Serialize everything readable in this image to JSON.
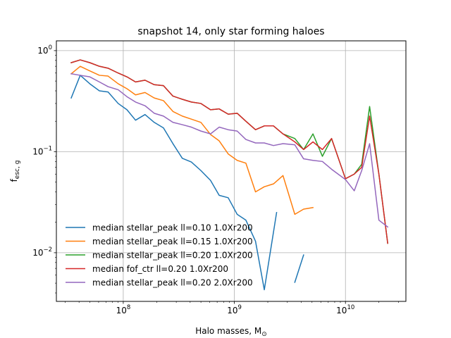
{
  "chart_data": {
    "type": "line",
    "title": "snapshot 14, only star forming haloes",
    "xlabel": "Halo masses, M",
    "xlabel_sub": "⊙",
    "ylabel": "f",
    "ylabel_sub": "esc, g",
    "xscale": "log",
    "yscale": "log",
    "xlim": [
      25000000,
      35000000000
    ],
    "ylim": [
      0.0033,
      1.25
    ],
    "grid": true,
    "legend_position": "lower-left",
    "x_major_ticks": [
      {
        "value": 100000000,
        "base": "10",
        "exp": "8"
      },
      {
        "value": 1000000000,
        "base": "10",
        "exp": "9"
      },
      {
        "value": 10000000000,
        "base": "10",
        "exp": "10"
      }
    ],
    "y_major_ticks": [
      {
        "value": 0.01,
        "base": "10",
        "exp": "−2"
      },
      {
        "value": 0.1,
        "base": "10",
        "exp": "−1"
      },
      {
        "value": 1,
        "base": "10",
        "exp": "0"
      }
    ],
    "series": [
      {
        "name": "median stellar_peak ll=0.10 1.0Xr200",
        "color": "#1f77b4",
        "segments": [
          [
            [
              34000000,
              0.34
            ],
            [
              41000000,
              0.57
            ],
            [
              50000000,
              0.47
            ],
            [
              61000000,
              0.4
            ],
            [
              73000000,
              0.39
            ],
            [
              90000000,
              0.3
            ],
            [
              108000000,
              0.26
            ],
            [
              129000000,
              0.205
            ],
            [
              157000000,
              0.233
            ],
            [
              190000000,
              0.195
            ],
            [
              230000000,
              0.172
            ],
            [
              280000000,
              0.12
            ],
            [
              340000000,
              0.086
            ],
            [
              410000000,
              0.079
            ],
            [
              500000000,
              0.065
            ],
            [
              610000000,
              0.052
            ],
            [
              730000000,
              0.037
            ],
            [
              880000000,
              0.035
            ],
            [
              1060000000,
              0.024
            ],
            [
              1270000000,
              0.021
            ],
            [
              1550000000,
              0.013
            ],
            [
              1860000000,
              0.0043
            ],
            [
              2250000000,
              0.016
            ],
            [
              2400000000,
              0.025
            ]
          ],
          [
            [
              3500000000,
              0.0051
            ],
            [
              4200000000,
              0.0095
            ]
          ]
        ]
      },
      {
        "name": "median stellar_peak ll=0.15 1.0Xr200",
        "color": "#ff7f0e",
        "segments": [
          [
            [
              34000000,
              0.59
            ],
            [
              41000000,
              0.7
            ],
            [
              50000000,
              0.63
            ],
            [
              61000000,
              0.57
            ],
            [
              73000000,
              0.56
            ],
            [
              90000000,
              0.47
            ],
            [
              108000000,
              0.42
            ],
            [
              129000000,
              0.365
            ],
            [
              157000000,
              0.385
            ],
            [
              190000000,
              0.34
            ],
            [
              230000000,
              0.32
            ],
            [
              280000000,
              0.25
            ],
            [
              340000000,
              0.225
            ],
            [
              410000000,
              0.21
            ],
            [
              500000000,
              0.195
            ],
            [
              610000000,
              0.148
            ],
            [
              730000000,
              0.128
            ],
            [
              880000000,
              0.095
            ],
            [
              1060000000,
              0.082
            ],
            [
              1270000000,
              0.077
            ],
            [
              1550000000,
              0.04
            ],
            [
              1860000000,
              0.045
            ],
            [
              2250000000,
              0.048
            ],
            [
              2740000000,
              0.058
            ],
            [
              3500000000,
              0.024
            ],
            [
              4200000000,
              0.027
            ],
            [
              5100000000,
              0.028
            ]
          ]
        ]
      },
      {
        "name": "median stellar_peak ll=0.20 1.0Xr200",
        "color": "#2ca02c",
        "segments": [
          [
            [
              34000000,
              0.76
            ],
            [
              41000000,
              0.81
            ],
            [
              50000000,
              0.76
            ],
            [
              61000000,
              0.7
            ],
            [
              73000000,
              0.67
            ],
            [
              90000000,
              0.6
            ],
            [
              108000000,
              0.55
            ],
            [
              129000000,
              0.49
            ],
            [
              157000000,
              0.51
            ],
            [
              190000000,
              0.46
            ],
            [
              230000000,
              0.45
            ],
            [
              280000000,
              0.355
            ],
            [
              340000000,
              0.33
            ],
            [
              410000000,
              0.31
            ],
            [
              500000000,
              0.3
            ],
            [
              610000000,
              0.26
            ],
            [
              730000000,
              0.265
            ],
            [
              880000000,
              0.235
            ],
            [
              1060000000,
              0.24
            ],
            [
              1270000000,
              0.2
            ],
            [
              1550000000,
              0.165
            ],
            [
              1860000000,
              0.18
            ],
            [
              2250000000,
              0.18
            ],
            [
              2740000000,
              0.15
            ],
            [
              3500000000,
              0.135
            ],
            [
              4200000000,
              0.105
            ],
            [
              5100000000,
              0.15
            ],
            [
              6200000000,
              0.09
            ],
            [
              7500000000,
              0.135
            ],
            [
              10000000000,
              0.054
            ],
            [
              12000000000,
              0.06
            ],
            [
              14000000000,
              0.075
            ],
            [
              16500000000,
              0.28
            ],
            [
              20000000000,
              0.06
            ],
            [
              24000000000,
              0.0124
            ]
          ]
        ]
      },
      {
        "name": "median fof_ctr ll=0.20 1.0Xr200",
        "color": "#d62728",
        "segments": [
          [
            [
              34000000,
              0.76
            ],
            [
              41000000,
              0.81
            ],
            [
              50000000,
              0.76
            ],
            [
              61000000,
              0.7
            ],
            [
              73000000,
              0.67
            ],
            [
              90000000,
              0.6
            ],
            [
              108000000,
              0.55
            ],
            [
              129000000,
              0.49
            ],
            [
              157000000,
              0.51
            ],
            [
              190000000,
              0.46
            ],
            [
              230000000,
              0.45
            ],
            [
              280000000,
              0.355
            ],
            [
              340000000,
              0.33
            ],
            [
              410000000,
              0.31
            ],
            [
              500000000,
              0.3
            ],
            [
              610000000,
              0.26
            ],
            [
              730000000,
              0.265
            ],
            [
              880000000,
              0.235
            ],
            [
              1060000000,
              0.24
            ],
            [
              1270000000,
              0.2
            ],
            [
              1550000000,
              0.165
            ],
            [
              1860000000,
              0.18
            ],
            [
              2250000000,
              0.18
            ],
            [
              2740000000,
              0.15
            ],
            [
              3500000000,
              0.125
            ],
            [
              4200000000,
              0.105
            ],
            [
              5100000000,
              0.125
            ],
            [
              6200000000,
              0.105
            ],
            [
              7500000000,
              0.135
            ],
            [
              10000000000,
              0.054
            ],
            [
              12000000000,
              0.06
            ],
            [
              14000000000,
              0.07
            ],
            [
              16500000000,
              0.225
            ],
            [
              20000000000,
              0.06
            ],
            [
              24000000000,
              0.0124
            ]
          ]
        ]
      },
      {
        "name": "median stellar_peak ll=0.20 2.0Xr200",
        "color": "#9467bd",
        "segments": [
          [
            [
              34000000,
              0.59
            ],
            [
              41000000,
              0.57
            ],
            [
              50000000,
              0.55
            ],
            [
              61000000,
              0.49
            ],
            [
              73000000,
              0.44
            ],
            [
              90000000,
              0.41
            ],
            [
              108000000,
              0.35
            ],
            [
              129000000,
              0.31
            ],
            [
              157000000,
              0.285
            ],
            [
              190000000,
              0.24
            ],
            [
              230000000,
              0.225
            ],
            [
              280000000,
              0.195
            ],
            [
              340000000,
              0.185
            ],
            [
              410000000,
              0.175
            ],
            [
              500000000,
              0.16
            ],
            [
              610000000,
              0.15
            ],
            [
              730000000,
              0.175
            ],
            [
              880000000,
              0.165
            ],
            [
              1060000000,
              0.16
            ],
            [
              1270000000,
              0.132
            ],
            [
              1550000000,
              0.122
            ],
            [
              1860000000,
              0.122
            ],
            [
              2250000000,
              0.115
            ],
            [
              2740000000,
              0.12
            ],
            [
              3500000000,
              0.117
            ],
            [
              4200000000,
              0.085
            ],
            [
              5100000000,
              0.082
            ],
            [
              6200000000,
              0.08
            ],
            [
              7500000000,
              0.067
            ],
            [
              10000000000,
              0.053
            ],
            [
              12000000000,
              0.041
            ],
            [
              14000000000,
              0.065
            ],
            [
              16500000000,
              0.12
            ],
            [
              20000000000,
              0.021
            ],
            [
              24000000000,
              0.018
            ]
          ]
        ]
      }
    ]
  }
}
